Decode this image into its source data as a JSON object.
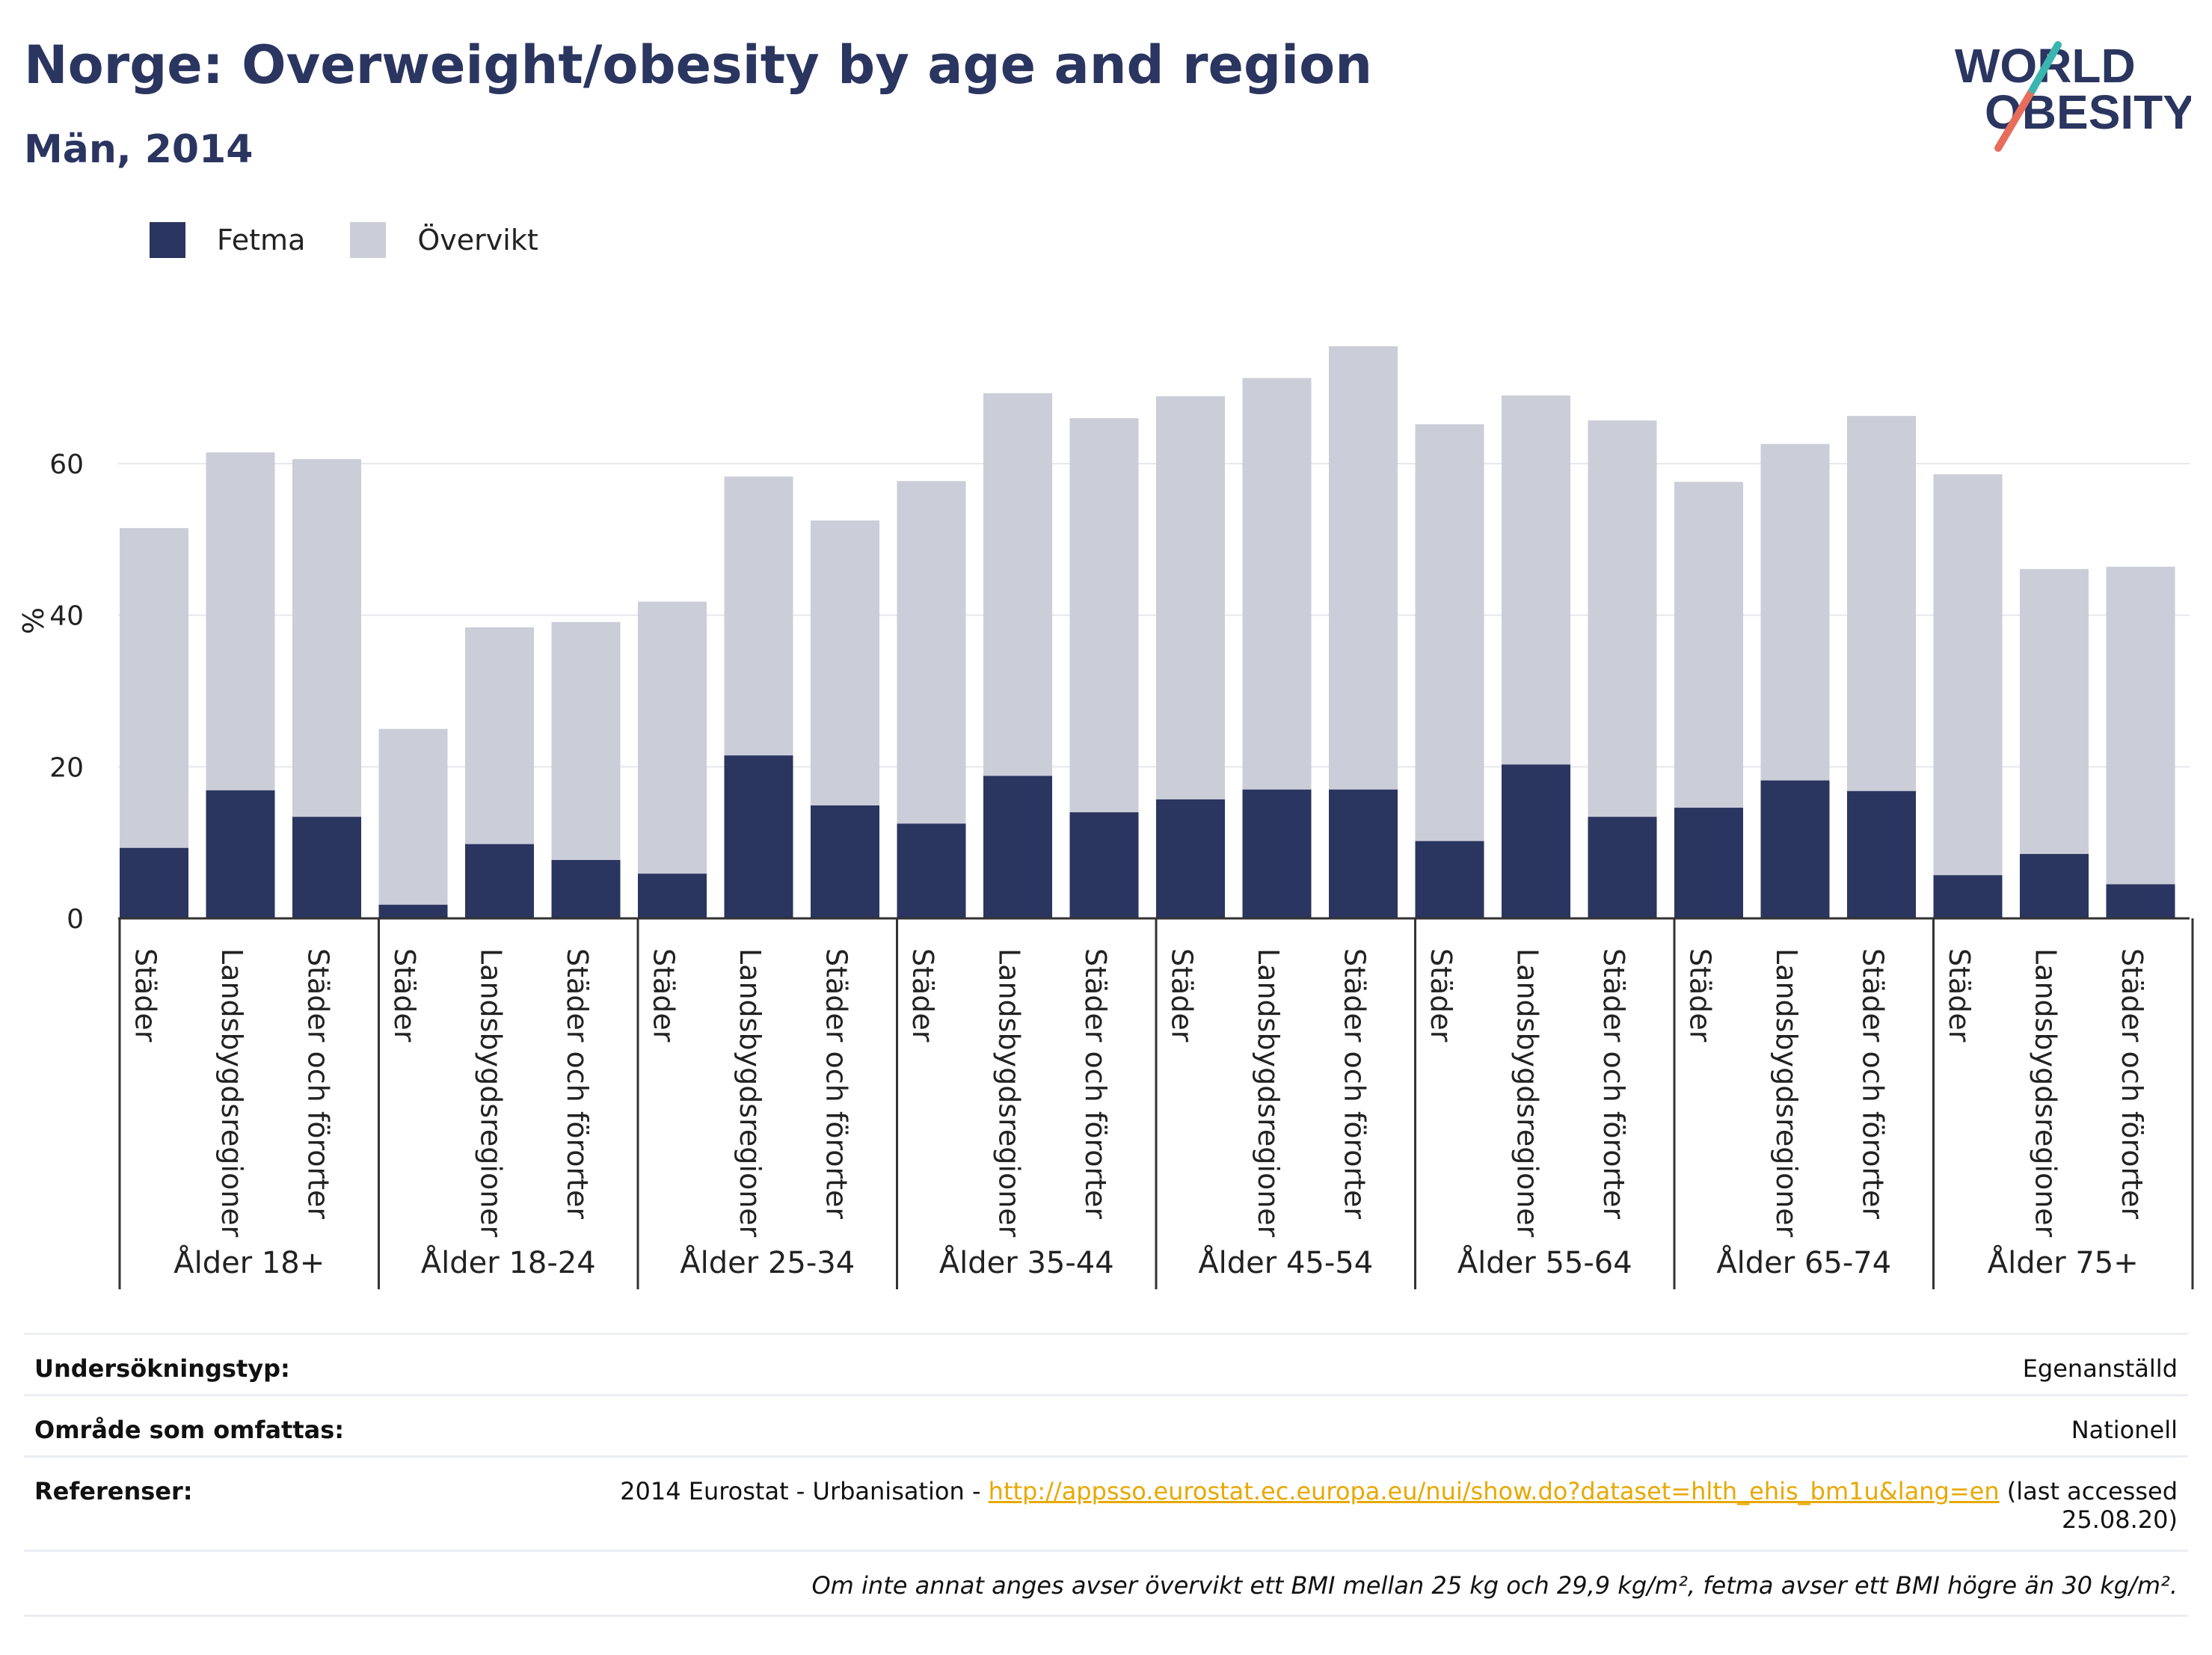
{
  "header": {
    "title": "Norge: Overweight/obesity by age and region",
    "subtitle": "Män, 2014"
  },
  "logo": {
    "line1": "WORLD",
    "line2": "OBESITY"
  },
  "colors": {
    "fetma": "#2a3560",
    "overvikt": "#cbcdd8",
    "grid": "#e6e7ec",
    "axis": "#333333",
    "link": "#e8a800"
  },
  "chart_data": {
    "type": "bar",
    "stacked": true,
    "title": "",
    "ylabel": "%",
    "ylim": [
      0,
      80
    ],
    "yticks": [
      0,
      20,
      40,
      60
    ],
    "grid": true,
    "legend_position": "top-left",
    "legend": [
      "Fetma",
      "Övervikt"
    ],
    "groups": [
      {
        "label": "Ålder 18+",
        "categories": [
          "Städer",
          "Landsbygdsregioner",
          "Städer och förorter"
        ],
        "fetma": [
          9.3,
          16.9,
          13.4
        ],
        "total": [
          51.5,
          61.5,
          60.6
        ]
      },
      {
        "label": "Ålder 18-24",
        "categories": [
          "Städer",
          "Landsbygdsregioner",
          "Städer och förorter"
        ],
        "fetma": [
          1.8,
          9.8,
          7.7
        ],
        "total": [
          25.0,
          38.4,
          39.1
        ]
      },
      {
        "label": "Ålder 25-34",
        "categories": [
          "Städer",
          "Landsbygdsregioner",
          "Städer och förorter"
        ],
        "fetma": [
          5.9,
          21.5,
          14.9
        ],
        "total": [
          41.8,
          58.3,
          52.5
        ]
      },
      {
        "label": "Ålder 35-44",
        "categories": [
          "Städer",
          "Landsbygdsregioner",
          "Städer och förorter"
        ],
        "fetma": [
          12.5,
          18.8,
          14.0
        ],
        "total": [
          57.7,
          69.3,
          66.0
        ]
      },
      {
        "label": "Ålder 45-54",
        "categories": [
          "Städer",
          "Landsbygdsregioner",
          "Städer och förorter"
        ],
        "fetma": [
          15.7,
          17.0,
          17.0
        ],
        "total": [
          68.9,
          71.3,
          75.5
        ]
      },
      {
        "label": "Ålder 55-64",
        "categories": [
          "Städer",
          "Landsbygdsregioner",
          "Städer och förorter"
        ],
        "fetma": [
          10.2,
          20.3,
          13.4
        ],
        "total": [
          65.2,
          69.0,
          65.7
        ]
      },
      {
        "label": "Ålder 65-74",
        "categories": [
          "Städer",
          "Landsbygdsregioner",
          "Städer och förorter"
        ],
        "fetma": [
          14.6,
          18.2,
          16.8
        ],
        "total": [
          57.6,
          62.6,
          66.3
        ]
      },
      {
        "label": "Ålder 75+",
        "categories": [
          "Städer",
          "Landsbygdsregioner",
          "Städer och förorter"
        ],
        "fetma": [
          5.7,
          8.5,
          4.5
        ],
        "total": [
          58.6,
          46.1,
          46.4
        ]
      }
    ]
  },
  "info": {
    "survey_type_label": "Undersökningstyp:",
    "survey_type_value": "Egenanställd",
    "area_label": "Område som omfattas:",
    "area_value": "Nationell",
    "references_label": "Referenser:",
    "references_prefix": "2014 Eurostat - Urbanisation - ",
    "references_link": "http://appsso.eurostat.ec.europa.eu/nui/show.do?dataset=hlth_ehis_bm1u&lang=en",
    "references_suffix": " (last accessed",
    "references_date": "25.08.20)",
    "footnote": "Om inte annat anges avser övervikt ett BMI mellan 25 kg och 29,9 kg/m², fetma avser ett BMI högre än 30 kg/m²."
  }
}
